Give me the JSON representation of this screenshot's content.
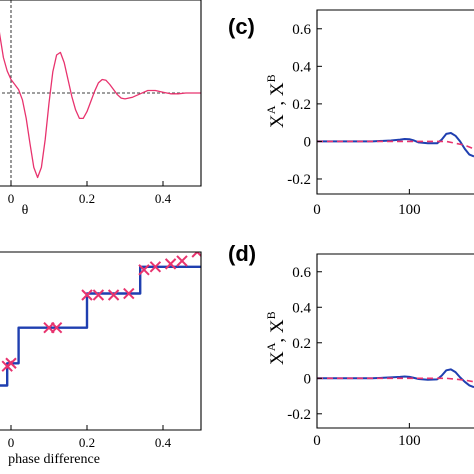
{
  "colors": {
    "pink": "#e8336e",
    "blue": "#1f3fb0",
    "red_dashed": "#e8336e",
    "black": "#000000"
  },
  "panel_labels": {
    "c": "(c)",
    "d": "(d)"
  },
  "chart_data": [
    {
      "id": "top-left",
      "type": "line",
      "xlabel": "θ",
      "ylabel": "",
      "xlim": [
        -0.05,
        0.5
      ],
      "ylim": [
        -1.1,
        1.1
      ],
      "xticks": [
        0,
        0.2,
        0.4
      ],
      "xtick_labels": [
        "0",
        "0.2",
        "0.4"
      ],
      "reference_lines": {
        "x": 0,
        "y": 0,
        "style": "dashed"
      },
      "series": [
        {
          "color": "#e8336e",
          "x": [
            -0.05,
            -0.04,
            -0.03,
            -0.02,
            -0.01,
            0.0,
            0.01,
            0.02,
            0.03,
            0.04,
            0.05,
            0.06,
            0.07,
            0.08,
            0.09,
            0.1,
            0.11,
            0.12,
            0.13,
            0.14,
            0.15,
            0.16,
            0.17,
            0.18,
            0.19,
            0.2,
            0.21,
            0.22,
            0.23,
            0.24,
            0.25,
            0.26,
            0.27,
            0.28,
            0.29,
            0.3,
            0.32,
            0.34,
            0.36,
            0.38,
            0.4,
            0.42,
            0.44,
            0.46,
            0.48,
            0.5
          ],
          "y": [
            1.4,
            1.05,
            0.7,
            0.42,
            0.26,
            0.16,
            0.1,
            0.04,
            -0.08,
            -0.3,
            -0.6,
            -0.88,
            -1.0,
            -0.88,
            -0.55,
            -0.12,
            0.25,
            0.45,
            0.48,
            0.36,
            0.16,
            -0.04,
            -0.2,
            -0.3,
            -0.3,
            -0.22,
            -0.1,
            0.02,
            0.12,
            0.16,
            0.15,
            0.1,
            0.04,
            -0.02,
            -0.06,
            -0.07,
            -0.05,
            -0.01,
            0.03,
            0.03,
            0.01,
            -0.01,
            -0.01,
            0.0,
            0.0,
            0.0
          ]
        }
      ]
    },
    {
      "id": "bottom-left",
      "type": "line",
      "xlabel": "phase difference",
      "ylabel": "",
      "xlim": [
        -0.05,
        0.5
      ],
      "ylim": [
        -0.1,
        1.1
      ],
      "xticks": [
        0,
        0.2,
        0.4
      ],
      "xtick_labels": [
        "0",
        "0.2",
        "0.4"
      ],
      "series": [
        {
          "style": "step",
          "color": "#1f3fb0",
          "x": [
            -0.05,
            -0.01,
            -0.01,
            0.02,
            0.02,
            0.2,
            0.2,
            0.34,
            0.34,
            0.5
          ],
          "y": [
            0.2,
            0.2,
            0.35,
            0.35,
            0.59,
            0.59,
            0.82,
            0.82,
            1.0,
            1.0
          ]
        },
        {
          "style": "markers",
          "marker": "x",
          "color": "#e8336e",
          "x": [
            -0.01,
            0.0,
            0.1,
            0.12,
            0.2,
            0.23,
            0.27,
            0.31,
            0.35,
            0.38,
            0.42,
            0.45,
            0.49
          ],
          "y": [
            0.33,
            0.35,
            0.59,
            0.59,
            0.81,
            0.81,
            0.81,
            0.82,
            0.98,
            1.0,
            1.02,
            1.04,
            1.1
          ]
        }
      ]
    },
    {
      "id": "c",
      "type": "line",
      "xlabel": "",
      "ylabel": "X^A, X^B",
      "xlim": [
        0,
        170
      ],
      "ylim": [
        -0.28,
        0.7
      ],
      "xticks": [
        0,
        100
      ],
      "xtick_labels": [
        "0",
        "100"
      ],
      "yticks": [
        -0.2,
        0,
        0.2,
        0.4,
        0.6
      ],
      "ytick_labels": [
        "-0.2",
        "0",
        "0.2",
        "0.4",
        "0.6"
      ],
      "series": [
        {
          "style": "solid",
          "color": "#1f3fb0",
          "x": [
            0,
            20,
            40,
            60,
            80,
            90,
            95,
            100,
            105,
            110,
            120,
            130,
            135,
            140,
            145,
            150,
            155,
            160,
            165,
            170
          ],
          "y": [
            0.0,
            0.0,
            0.0,
            0.0,
            0.005,
            0.01,
            0.013,
            0.012,
            0.005,
            -0.005,
            -0.01,
            -0.01,
            0.01,
            0.04,
            0.045,
            0.03,
            0.0,
            -0.04,
            -0.07,
            -0.08
          ]
        },
        {
          "style": "dashed",
          "color": "#e8336e",
          "x": [
            0,
            20,
            40,
            60,
            80,
            100,
            120,
            140,
            160,
            170
          ],
          "y": [
            0.0,
            0.0,
            0.0,
            0.0,
            0.0,
            0.0,
            0.0,
            0.0,
            -0.02,
            -0.04
          ]
        }
      ]
    },
    {
      "id": "d",
      "type": "line",
      "xlabel": "",
      "ylabel": "X^A, X^B",
      "xlim": [
        0,
        170
      ],
      "ylim": [
        -0.28,
        0.7
      ],
      "xticks": [
        0,
        100
      ],
      "xtick_labels": [
        "0",
        "100"
      ],
      "yticks": [
        -0.2,
        0,
        0.2,
        0.4,
        0.6
      ],
      "ytick_labels": [
        "-0.2",
        "0",
        "0.2",
        "0.4",
        "0.6"
      ],
      "series": [
        {
          "style": "solid",
          "color": "#1f3fb0",
          "x": [
            0,
            20,
            40,
            60,
            80,
            90,
            95,
            100,
            105,
            110,
            120,
            130,
            135,
            140,
            145,
            150,
            155,
            160,
            165,
            170
          ],
          "y": [
            0.0,
            0.0,
            0.0,
            0.0,
            0.005,
            0.008,
            0.01,
            0.008,
            0.002,
            -0.004,
            -0.008,
            -0.006,
            0.015,
            0.045,
            0.05,
            0.035,
            0.005,
            -0.02,
            -0.04,
            -0.05
          ]
        },
        {
          "style": "dashed",
          "color": "#e8336e",
          "x": [
            0,
            20,
            40,
            60,
            80,
            100,
            120,
            140,
            160,
            170
          ],
          "y": [
            0.0,
            0.0,
            0.0,
            0.0,
            0.0,
            0.0,
            0.0,
            0.0,
            -0.01,
            -0.02
          ]
        }
      ]
    }
  ]
}
